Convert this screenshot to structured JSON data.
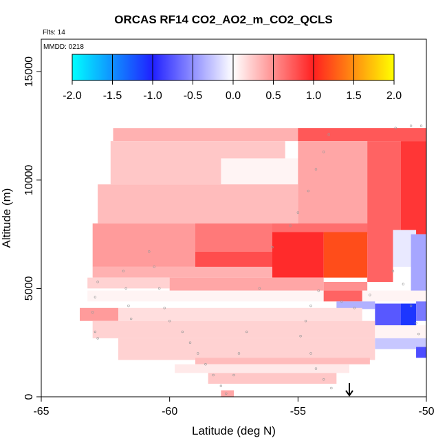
{
  "title": "ORCAS RF14 CO2_AO2_m_CO2_QCLS",
  "flights_note": "Flts: 14",
  "date_note": "MMDD: 0218",
  "chart_data": {
    "type": "heatmap",
    "title": "ORCAS RF14 CO2_AO2_m_CO2_QCLS",
    "xlabel": "Latitude (deg N)",
    "ylabel": "Altitude (m)",
    "xlim": [
      -65,
      -50
    ],
    "ylim": [
      0,
      16500
    ],
    "xticks": [
      -65,
      -60,
      -55,
      -50
    ],
    "yticks": [
      0,
      5000,
      10000,
      15000
    ],
    "colorbar": {
      "range": [
        -2.0,
        2.0
      ],
      "ticks": [
        "-2.0",
        "-1.5",
        "-1.0",
        "-0.5",
        "0.0",
        "0.5",
        "1.0",
        "1.5",
        "2.0"
      ],
      "stops": [
        {
          "value": -2.0,
          "color": "#00ffff"
        },
        {
          "value": -1.0,
          "color": "#2020ff"
        },
        {
          "value": 0.0,
          "color": "#ffffff"
        },
        {
          "value": 1.0,
          "color": "#ff2020"
        },
        {
          "value": 2.0,
          "color": "#ffff00"
        }
      ]
    },
    "regions": [
      {
        "lat": [
          -62.2,
          -50.0
        ],
        "alt": [
          11800,
          12400
        ],
        "value": 0.35
      },
      {
        "lat": [
          -55.0,
          -50.0
        ],
        "alt": [
          11800,
          12400
        ],
        "value": 0.75
      },
      {
        "lat": [
          -62.3,
          -55.5
        ],
        "alt": [
          9800,
          11800
        ],
        "value": 0.25
      },
      {
        "lat": [
          -58.0,
          -55.0
        ],
        "alt": [
          9500,
          11000
        ],
        "value": 0.05
      },
      {
        "lat": [
          -62.8,
          -55.0
        ],
        "alt": [
          8000,
          9800
        ],
        "value": 0.3
      },
      {
        "lat": [
          -55.0,
          -52.3
        ],
        "alt": [
          7500,
          11800
        ],
        "value": 0.4
      },
      {
        "lat": [
          -52.3,
          -51.0
        ],
        "alt": [
          7500,
          11800
        ],
        "value": 0.7
      },
      {
        "lat": [
          -51.0,
          -50.0
        ],
        "alt": [
          7500,
          11800
        ],
        "value": 0.9
      },
      {
        "lat": [
          -63.0,
          -59.0
        ],
        "alt": [
          6000,
          8000
        ],
        "value": 0.45
      },
      {
        "lat": [
          -59.0,
          -56.0
        ],
        "alt": [
          6700,
          8000
        ],
        "value": 0.6
      },
      {
        "lat": [
          -59.0,
          -56.0
        ],
        "alt": [
          5600,
          6700
        ],
        "value": 0.8
      },
      {
        "lat": [
          -56.0,
          -54.0
        ],
        "alt": [
          5500,
          7600
        ],
        "value": 0.95
      },
      {
        "lat": [
          -56.0,
          -52.3
        ],
        "alt": [
          7600,
          8000
        ],
        "value": 0.65
      },
      {
        "lat": [
          -54.0,
          -52.3
        ],
        "alt": [
          5500,
          7600
        ],
        "value": 1.2
      },
      {
        "lat": [
          -52.3,
          -51.3
        ],
        "alt": [
          5300,
          8000
        ],
        "value": 0.7
      },
      {
        "lat": [
          -51.3,
          -50.4
        ],
        "alt": [
          6000,
          7700
        ],
        "value": -0.1
      },
      {
        "lat": [
          -50.6,
          -50.0
        ],
        "alt": [
          4500,
          7500
        ],
        "value": -0.4
      },
      {
        "lat": [
          -63.0,
          -56.0
        ],
        "alt": [
          5500,
          6000
        ],
        "value": 0.35
      },
      {
        "lat": [
          -63.2,
          -60.0
        ],
        "alt": [
          5000,
          5500
        ],
        "value": 0.2
      },
      {
        "lat": [
          -60.0,
          -54.0
        ],
        "alt": [
          4900,
          5500
        ],
        "value": 0.4
      },
      {
        "lat": [
          -54.0,
          -52.3
        ],
        "alt": [
          4900,
          5300
        ],
        "value": 0.5
      },
      {
        "lat": [
          -63.2,
          -50.0
        ],
        "alt": [
          4400,
          4900
        ],
        "value": 0.05
      },
      {
        "lat": [
          -54.0,
          -52.5
        ],
        "alt": [
          4400,
          4900
        ],
        "value": 0.7
      },
      {
        "lat": [
          -53.5,
          -52.0
        ],
        "alt": [
          4050,
          4400
        ],
        "value": -0.35
      },
      {
        "lat": [
          -52.0,
          -51.0
        ],
        "alt": [
          3300,
          4300
        ],
        "value": -0.75
      },
      {
        "lat": [
          -51.0,
          -50.4
        ],
        "alt": [
          3300,
          4300
        ],
        "value": -1.1
      },
      {
        "lat": [
          -50.4,
          -50.0
        ],
        "alt": [
          3500,
          4400
        ],
        "value": -0.6
      },
      {
        "lat": [
          -63.5,
          -62.0
        ],
        "alt": [
          3500,
          4100
        ],
        "value": 0.45
      },
      {
        "lat": [
          -62.0,
          -52.5
        ],
        "alt": [
          3500,
          4100
        ],
        "value": 0.15
      },
      {
        "lat": [
          -63.0,
          -52.0
        ],
        "alt": [
          2700,
          3500
        ],
        "value": 0.2
      },
      {
        "lat": [
          -62.0,
          -52.0
        ],
        "alt": [
          1700,
          2700
        ],
        "value": 0.2
      },
      {
        "lat": [
          -52.0,
          -50.0
        ],
        "alt": [
          2700,
          3300
        ],
        "value": 0.05
      },
      {
        "lat": [
          -52.0,
          -50.0
        ],
        "alt": [
          2200,
          2700
        ],
        "value": -0.25
      },
      {
        "lat": [
          -50.4,
          -50.0
        ],
        "alt": [
          1800,
          2300
        ],
        "value": -0.8
      },
      {
        "lat": [
          -59.0,
          -52.2
        ],
        "alt": [
          1500,
          1800
        ],
        "value": 0.3
      },
      {
        "lat": [
          -59.8,
          -53.0
        ],
        "alt": [
          1100,
          1500
        ],
        "value": 0.1
      },
      {
        "lat": [
          -58.5,
          -53.5
        ],
        "alt": [
          600,
          1100
        ],
        "value": 0.25
      },
      {
        "lat": [
          -58.0,
          -57.5
        ],
        "alt": [
          0,
          300
        ],
        "value": 0.4
      }
    ],
    "arrow_latitude": -53,
    "flight_track": [
      [
        -62.8,
        5300
      ],
      [
        -62.9,
        4600
      ],
      [
        -63.0,
        3900
      ],
      [
        -62.9,
        3000
      ],
      [
        -62.8,
        2700
      ],
      [
        -61.8,
        5800
      ],
      [
        -61.7,
        5000
      ],
      [
        -61.6,
        4200
      ],
      [
        -61.5,
        3600
      ],
      [
        -60.8,
        6700
      ],
      [
        -60.6,
        6000
      ],
      [
        -60.4,
        5000
      ],
      [
        -60.2,
        4100
      ],
      [
        -60.0,
        3500
      ],
      [
        -59.5,
        3000
      ],
      [
        -59.2,
        2500
      ],
      [
        -58.9,
        2000
      ],
      [
        -58.6,
        1500
      ],
      [
        -58.3,
        1000
      ],
      [
        -58.0,
        500
      ],
      [
        -57.8,
        150
      ],
      [
        -57.5,
        1000
      ],
      [
        -57.3,
        2000
      ],
      [
        -57.0,
        3000
      ],
      [
        -56.5,
        5000
      ],
      [
        -56.0,
        6900
      ],
      [
        -55.3,
        7900
      ],
      [
        -55.0,
        8500
      ],
      [
        -54.6,
        9500
      ],
      [
        -54.3,
        10500
      ],
      [
        -54.0,
        11300
      ],
      [
        -53.8,
        12100
      ],
      [
        -54.2,
        4900
      ],
      [
        -54.5,
        4200
      ],
      [
        -54.7,
        3500
      ],
      [
        -54.9,
        2800
      ],
      [
        -54.5,
        2000
      ],
      [
        -54.3,
        1300
      ],
      [
        -54.0,
        800
      ],
      [
        -53.7,
        400
      ],
      [
        -53.3,
        4400
      ],
      [
        -52.8,
        4100
      ],
      [
        -52.2,
        4700
      ],
      [
        -51.3,
        5800
      ],
      [
        -50.9,
        5200
      ],
      [
        -50.6,
        4200
      ],
      [
        -50.4,
        3400
      ],
      [
        -50.3,
        2900
      ],
      [
        -51.2,
        12400
      ],
      [
        -50.6,
        12500
      ],
      [
        -50.2,
        12500
      ]
    ]
  }
}
